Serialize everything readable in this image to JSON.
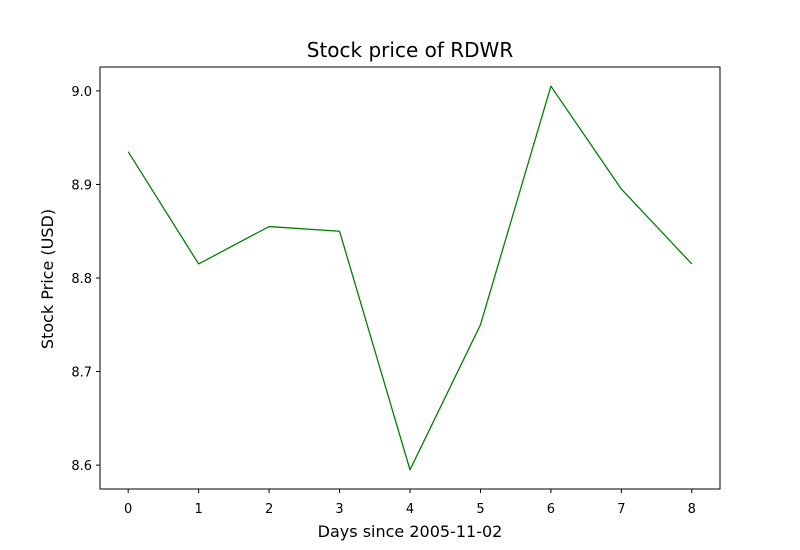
{
  "chart_data": {
    "type": "line",
    "title": "Stock price of RDWR",
    "xlabel": "Days since 2005-11-02",
    "ylabel": "Stock Price (USD)",
    "x": [
      0,
      1,
      2,
      3,
      4,
      5,
      6,
      7,
      8
    ],
    "series": [
      {
        "name": "RDWR",
        "color": "#008000",
        "values": [
          8.935,
          8.815,
          8.855,
          8.85,
          8.595,
          8.75,
          9.005,
          8.895,
          8.815
        ]
      }
    ],
    "xlim": [
      -0.4,
      8.4
    ],
    "ylim": [
      8.5745,
      9.0255
    ],
    "xticks": [
      0,
      1,
      2,
      3,
      4,
      5,
      6,
      7,
      8
    ],
    "xtick_labels": [
      "0",
      "1",
      "2",
      "3",
      "4",
      "5",
      "6",
      "7",
      "8"
    ],
    "yticks": [
      8.6,
      8.7,
      8.8,
      8.9,
      9.0
    ],
    "ytick_labels": [
      "8.6",
      "8.7",
      "8.8",
      "8.9",
      "9.0"
    ],
    "grid": false,
    "legend": "none"
  }
}
